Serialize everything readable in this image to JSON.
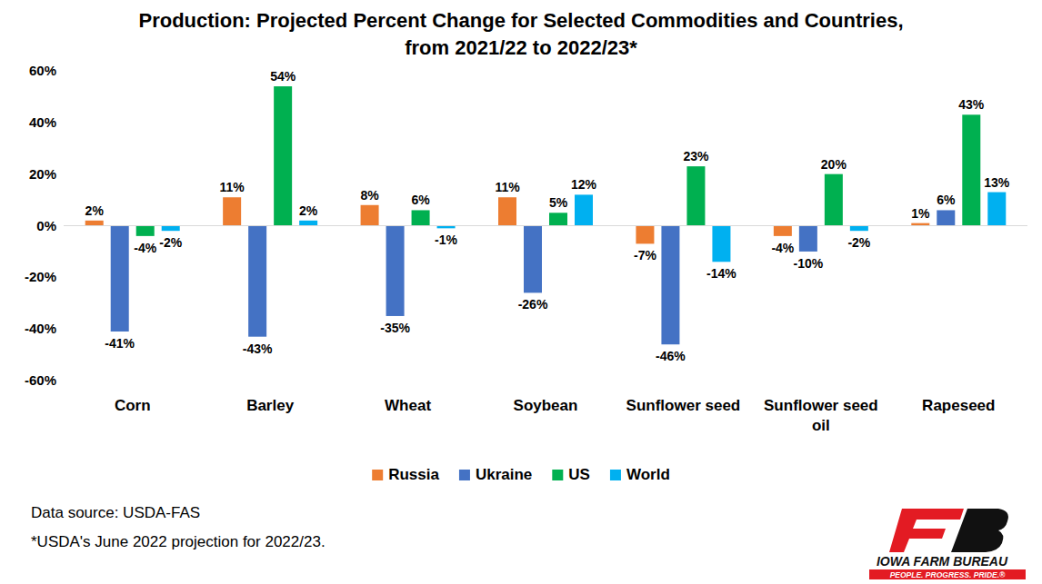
{
  "chart_data": {
    "type": "bar",
    "title": "Production: Projected Percent Change for Selected Commodities and Countries, from 2021/22 to 2022/23*",
    "categories": [
      "Corn",
      "Barley",
      "Wheat",
      "Soybean",
      "Sunflower seed",
      "Sunflower seed oil",
      "Rapeseed"
    ],
    "series": [
      {
        "name": "Russia",
        "color": "#ed7d31",
        "values": [
          2,
          11,
          8,
          11,
          -7,
          -4,
          1
        ],
        "value_labels": [
          "2%",
          "11%",
          "8%",
          "11%",
          "-7%",
          "-4%",
          "1%"
        ]
      },
      {
        "name": "Ukraine",
        "color": "#4472c4",
        "values": [
          -41,
          -43,
          -35,
          -26,
          -46,
          -10,
          6
        ],
        "value_labels": [
          "-41%",
          "-43%",
          "-35%",
          "-26%",
          "-46%",
          "-10%",
          "6%"
        ]
      },
      {
        "name": "US",
        "color": "#00b050",
        "values": [
          -4,
          54,
          6,
          5,
          23,
          20,
          43
        ],
        "value_labels": [
          "-4%",
          "54%",
          "6%",
          "5%",
          "23%",
          "20%",
          "43%"
        ]
      },
      {
        "name": "World",
        "color": "#00b0f0",
        "values": [
          -2,
          2,
          -1,
          12,
          -14,
          -2,
          13
        ],
        "value_labels": [
          "-2%",
          "2%",
          "-1%",
          "12%",
          "-14%",
          "-2%",
          "13%"
        ]
      }
    ],
    "ylim": [
      -60,
      60
    ],
    "yticks": [
      {
        "value": -60,
        "label": "-60%"
      },
      {
        "value": -40,
        "label": "-40%"
      },
      {
        "value": -20,
        "label": "-20%"
      },
      {
        "value": 0,
        "label": "0%"
      },
      {
        "value": 20,
        "label": "20%"
      },
      {
        "value": 40,
        "label": "40%"
      },
      {
        "value": 60,
        "label": "60%"
      }
    ],
    "grid": false,
    "legend": "bottom",
    "data_labels": true,
    "annotations": [
      "Data source: USDA-FAS",
      "*USDA's June 2022 projection for 2022/23.",
      "IOWA FARM BUREAU",
      "PEOPLE. PROGRESS. PRIDE.®"
    ]
  }
}
